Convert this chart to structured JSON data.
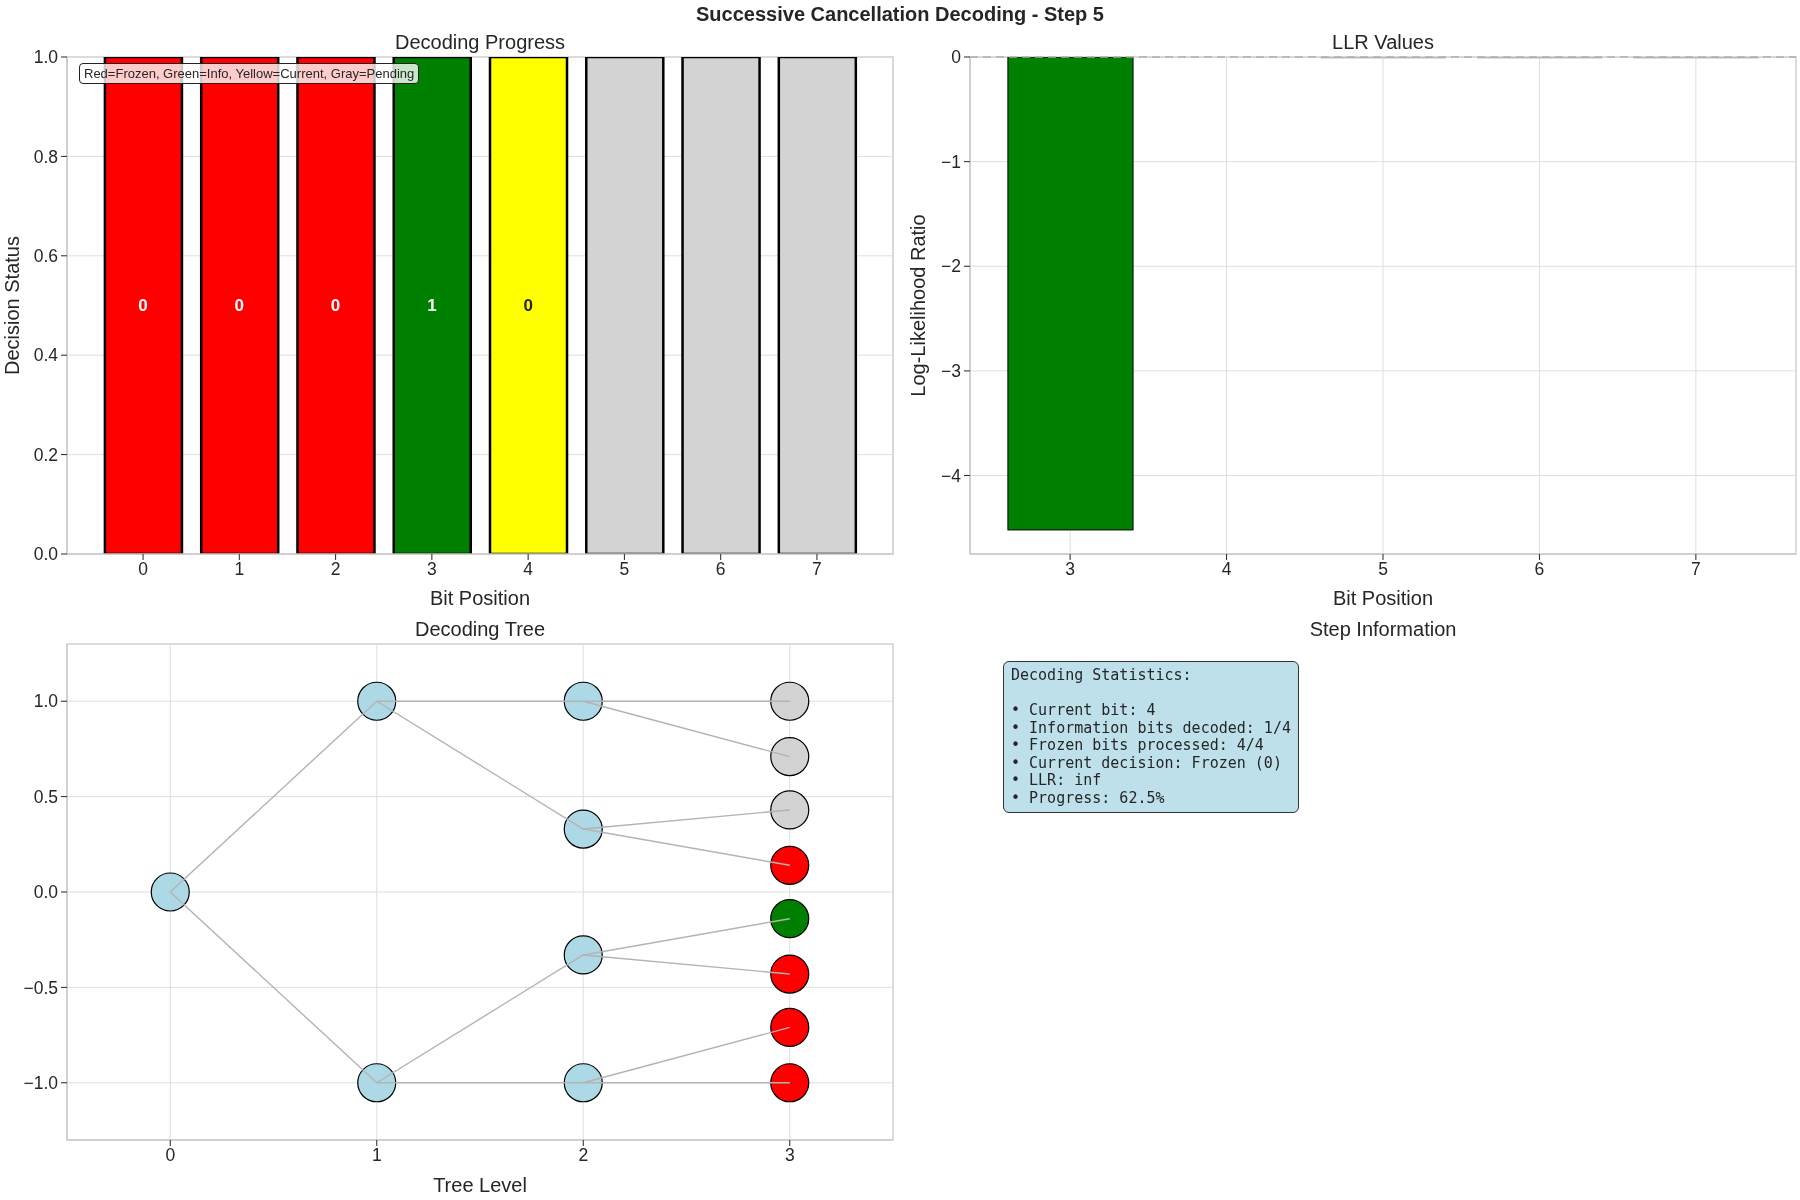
{
  "chart_data": [
    {
      "type": "bar",
      "annotations": [
        "Successive Cancellation Decoding - Step 5",
        "Red=Frozen, Green=Info, Yellow=Current, Gray=Pending",
        "0",
        "0",
        "0",
        "1",
        "0"
      ],
      "title": "Decoding Progress",
      "xlabel": "Bit Position",
      "ylabel": "Decision Status",
      "x": [
        0,
        1,
        2,
        3,
        4,
        5,
        6,
        7
      ],
      "values": [
        1,
        1,
        1,
        1,
        1,
        1,
        1,
        1
      ],
      "colors": [
        "#ff0000",
        "#ff0000",
        "#ff0000",
        "#008000",
        "#ffff00",
        "#d3d3d3",
        "#d3d3d3",
        "#d3d3d3"
      ],
      "xlim": [
        -0.79,
        7.79
      ],
      "xticks": [
        0,
        1,
        2,
        3,
        4,
        5,
        6,
        7
      ],
      "ylim": [
        0,
        1
      ],
      "yticks": [
        {
          "value": 0,
          "label": "0.0"
        },
        0.2,
        0.4,
        0.6,
        0.8,
        {
          "value": 1,
          "label": "1.0"
        }
      ],
      "grid": "y"
    },
    {
      "type": "bar",
      "title": "LLR Values",
      "xlabel": "Bit Position",
      "ylabel": "Log-Likelihood Ratio",
      "x": [
        3,
        5,
        6,
        7
      ],
      "values": [
        -4.52,
        0,
        0,
        0
      ],
      "colors": [
        "#008000",
        "#bbbbbb",
        "#bbbbbb",
        "#bbbbbb"
      ],
      "xlim": [
        2.36,
        7.64
      ],
      "xticks": [
        3,
        4,
        5,
        6,
        7
      ],
      "ylim": [
        -4.75,
        0
      ],
      "yticks": [
        0,
        {
          "value": -1,
          "label": "−1"
        },
        {
          "value": -2,
          "label": "−2"
        },
        {
          "value": -3,
          "label": "−3"
        },
        {
          "value": -4,
          "label": "−4"
        }
      ],
      "grid": true,
      "ref_lines": [
        {
          "axis": "y",
          "value": 0,
          "color": "#b0b0b0",
          "line_style": "dashed"
        }
      ]
    },
    {
      "type": "scatter",
      "title": "Decoding Tree",
      "xlabel": "Tree Level",
      "series": [
        {
          "type": "scatter",
          "marker": "circle",
          "x": [
            0,
            1,
            1,
            2,
            2,
            2,
            2,
            3,
            3,
            3,
            3,
            3,
            3,
            3,
            3
          ],
          "values": [
            0,
            1,
            -1,
            1,
            0.33,
            -0.33,
            -1,
            1,
            0.71,
            0.43,
            0.14,
            -0.14,
            -0.43,
            -0.71,
            -1
          ],
          "colors": [
            "#add8e6",
            "#add8e6",
            "#add8e6",
            "#add8e6",
            "#add8e6",
            "#add8e6",
            "#add8e6",
            "#d3d3d3",
            "#d3d3d3",
            "#d3d3d3",
            "#ff0000",
            "#008000",
            "#ff0000",
            "#ff0000",
            "#ff0000"
          ]
        },
        {
          "type": "line",
          "x": [
            0,
            1
          ],
          "values": [
            0,
            1
          ],
          "color": "#b3b3b3"
        },
        {
          "type": "line",
          "x": [
            0,
            1
          ],
          "values": [
            0,
            -1
          ],
          "color": "#b3b3b3"
        },
        {
          "type": "line",
          "x": [
            1,
            2
          ],
          "values": [
            1,
            1
          ],
          "color": "#b3b3b3"
        },
        {
          "type": "line",
          "x": [
            1,
            2
          ],
          "values": [
            1,
            0.33
          ],
          "color": "#b3b3b3"
        },
        {
          "type": "line",
          "x": [
            1,
            2
          ],
          "values": [
            -1,
            -0.33
          ],
          "color": "#b3b3b3"
        },
        {
          "type": "line",
          "x": [
            1,
            2
          ],
          "values": [
            -1,
            -1
          ],
          "color": "#b3b3b3"
        },
        {
          "type": "line",
          "x": [
            2,
            3
          ],
          "values": [
            1,
            1
          ],
          "color": "#b3b3b3"
        },
        {
          "type": "line",
          "x": [
            2,
            3
          ],
          "values": [
            1,
            0.71
          ],
          "color": "#b3b3b3"
        },
        {
          "type": "line",
          "x": [
            2,
            3
          ],
          "values": [
            0.33,
            0.43
          ],
          "color": "#b3b3b3"
        },
        {
          "type": "line",
          "x": [
            2,
            3
          ],
          "values": [
            0.33,
            0.14
          ],
          "color": "#b3b3b3"
        },
        {
          "type": "line",
          "x": [
            2,
            3
          ],
          "values": [
            -0.33,
            -0.14
          ],
          "color": "#b3b3b3"
        },
        {
          "type": "line",
          "x": [
            2,
            3
          ],
          "values": [
            -0.33,
            -0.43
          ],
          "color": "#b3b3b3"
        },
        {
          "type": "line",
          "x": [
            2,
            3
          ],
          "values": [
            -1,
            -0.71
          ],
          "color": "#b3b3b3"
        },
        {
          "type": "line",
          "x": [
            2,
            3
          ],
          "values": [
            -1,
            -1
          ],
          "color": "#b3b3b3"
        }
      ],
      "xlim": [
        -0.5,
        3.5
      ],
      "xticks": [
        0,
        1,
        2,
        3
      ],
      "ylim": [
        -1.3,
        1.3
      ],
      "yticks": [
        {
          "value": -1,
          "label": "−1.0"
        },
        {
          "value": -0.5,
          "label": "−0.5"
        },
        {
          "value": 0,
          "label": "0.0"
        },
        0.5,
        {
          "value": 1,
          "label": "1.0"
        }
      ],
      "grid": true
    },
    {
      "type": "other",
      "title": "Step Information",
      "annotations": [
        "Decoding Statistics:\n\n• Current bit: 4\n• Information bits decoded: 1/4\n• Frozen bits processed: 4/4\n• Current decision: Frozen (0)\n• LLR: inf\n• Progress: 62.5%"
      ]
    }
  ]
}
